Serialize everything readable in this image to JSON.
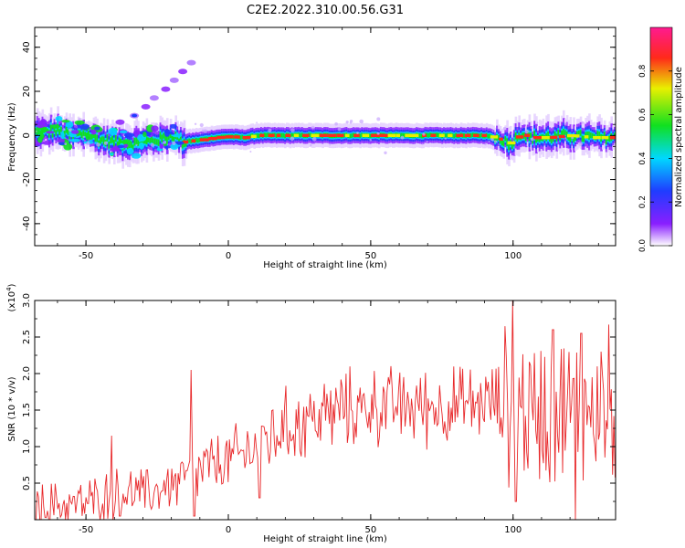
{
  "title": "C2E2.2022.310.00.56.G31",
  "chart_data": [
    {
      "type": "heatmap",
      "xlabel": "Height of straight line (km)",
      "ylabel": "Frequency (Hz)",
      "xlim": [
        -68,
        136
      ],
      "ylim": [
        -50,
        49
      ],
      "xticks": [
        -50,
        0,
        50,
        100
      ],
      "yticks": [
        -40,
        -20,
        0,
        20,
        40
      ],
      "grid": false,
      "colorbar": {
        "label": "Normalized spectral amplitude",
        "range": [
          0.0,
          1.0
        ],
        "ticks": [
          "0.0",
          "0.2",
          "0.4",
          "0.6",
          "0.8"
        ],
        "colors": [
          "#ffffff",
          "#8a1fff",
          "#1f3cff",
          "#00d8ff",
          "#10e020",
          "#e8f000",
          "#ff2a1a",
          "#ff1a90"
        ]
      },
      "ridge": [
        {
          "x": -66,
          "f": 1.5
        },
        {
          "x": -60,
          "f": 2
        },
        {
          "x": -55,
          "f": 0
        },
        {
          "x": -50,
          "f": 1
        },
        {
          "x": -46,
          "f": -2
        },
        {
          "x": -40,
          "f": -3
        },
        {
          "x": -35,
          "f": -4
        },
        {
          "x": -30,
          "f": -3
        },
        {
          "x": -25,
          "f": -2
        },
        {
          "x": -20,
          "f": 0
        },
        {
          "x": -16,
          "f": -3
        },
        {
          "x": -10,
          "f": -2
        },
        {
          "x": -5,
          "f": -1
        },
        {
          "x": 0,
          "f": -0.5
        },
        {
          "x": 5,
          "f": -1
        },
        {
          "x": 10,
          "f": 0
        },
        {
          "x": 20,
          "f": 0
        },
        {
          "x": 40,
          "f": 0
        },
        {
          "x": 60,
          "f": 0
        },
        {
          "x": 80,
          "f": 0
        },
        {
          "x": 90,
          "f": 0
        },
        {
          "x": 96,
          "f": -2
        },
        {
          "x": 99,
          "f": -4
        },
        {
          "x": 102,
          "f": 1
        },
        {
          "x": 106,
          "f": -1
        },
        {
          "x": 112,
          "f": -1
        },
        {
          "x": 120,
          "f": 0
        },
        {
          "x": 128,
          "f": -1
        },
        {
          "x": 135,
          "f": -1
        }
      ],
      "harmonic": [
        {
          "x": -38,
          "f": 6
        },
        {
          "x": -33,
          "f": 9
        },
        {
          "x": -29,
          "f": 13
        },
        {
          "x": -26,
          "f": 17
        },
        {
          "x": -22,
          "f": 21
        },
        {
          "x": -19,
          "f": 25
        },
        {
          "x": -16,
          "f": 29
        },
        {
          "x": -13,
          "f": 33
        }
      ]
    },
    {
      "type": "line",
      "xlabel": "Height of straight line (km)",
      "ylabel": "SNR (10 * v/v)",
      "multiplier_label": "(x10",
      "multiplier_exp": "4",
      "multiplier_close": ")",
      "xlim": [
        -68,
        136
      ],
      "ylim": [
        0,
        3.0
      ],
      "xticks": [
        -50,
        0,
        50,
        100
      ],
      "yticks": [
        "0.5",
        "1.0",
        "1.5",
        "2.0",
        "2.5",
        "3.0"
      ],
      "grid": false,
      "series": [
        {
          "color": "#e8282a",
          "trend": [
            {
              "x": -68,
              "y": 0.15
            },
            {
              "x": -60,
              "y": 0.2
            },
            {
              "x": -50,
              "y": 0.22
            },
            {
              "x": -42,
              "y": 0.35
            },
            {
              "x": -35,
              "y": 0.38
            },
            {
              "x": -28,
              "y": 0.35
            },
            {
              "x": -22,
              "y": 0.45
            },
            {
              "x": -15,
              "y": 0.55
            },
            {
              "x": -8,
              "y": 0.7
            },
            {
              "x": 0,
              "y": 0.8
            },
            {
              "x": 5,
              "y": 0.9
            },
            {
              "x": 10,
              "y": 1.0
            },
            {
              "x": 15,
              "y": 1.15
            },
            {
              "x": 20,
              "y": 1.25
            },
            {
              "x": 30,
              "y": 1.4
            },
            {
              "x": 40,
              "y": 1.5
            },
            {
              "x": 50,
              "y": 1.55
            },
            {
              "x": 60,
              "y": 1.55
            },
            {
              "x": 70,
              "y": 1.55
            },
            {
              "x": 80,
              "y": 1.55
            },
            {
              "x": 90,
              "y": 1.6
            },
            {
              "x": 98,
              "y": 1.6
            },
            {
              "x": 105,
              "y": 1.5
            },
            {
              "x": 115,
              "y": 1.5
            },
            {
              "x": 125,
              "y": 1.5
            },
            {
              "x": 136,
              "y": 1.55
            }
          ],
          "spikes": [
            {
              "x": -41,
              "y": 1.15
            },
            {
              "x": -38,
              "y": 0.05
            },
            {
              "x": -13,
              "y": 2.05
            },
            {
              "x": -12,
              "y": 0.05
            },
            {
              "x": 11,
              "y": 0.3
            },
            {
              "x": 100,
              "y": 3.0
            },
            {
              "x": 101,
              "y": 0.25
            },
            {
              "x": 114,
              "y": 2.6
            },
            {
              "x": 122,
              "y": 0.0
            },
            {
              "x": 124,
              "y": 2.55
            },
            {
              "x": 131,
              "y": 2.3
            }
          ]
        }
      ]
    }
  ]
}
